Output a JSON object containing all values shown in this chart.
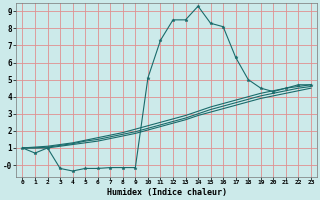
{
  "xlabel": "Humidex (Indice chaleur)",
  "bg_color": "#cceaea",
  "grid_color": "#e09090",
  "line_color": "#1a6b6b",
  "xlim": [
    -0.5,
    23.5
  ],
  "ylim": [
    -0.7,
    9.5
  ],
  "xticks": [
    0,
    1,
    2,
    3,
    4,
    5,
    6,
    7,
    8,
    9,
    10,
    11,
    12,
    13,
    14,
    15,
    16,
    17,
    18,
    19,
    20,
    21,
    22,
    23
  ],
  "yticks": [
    0,
    1,
    2,
    3,
    4,
    5,
    6,
    7,
    8,
    9
  ],
  "ytick_labels": [
    "-0",
    "1",
    "2",
    "3",
    "4",
    "5",
    "6",
    "7",
    "8",
    "9"
  ],
  "curve1_x": [
    0,
    1,
    2,
    3,
    4,
    5,
    6,
    7,
    8,
    9,
    10,
    11,
    12,
    13,
    14,
    15,
    16,
    17,
    18,
    19,
    20,
    21,
    22,
    23
  ],
  "curve1_y": [
    1.0,
    0.7,
    1.0,
    -0.2,
    -0.35,
    -0.2,
    -0.2,
    -0.15,
    -0.15,
    -0.15,
    5.1,
    7.3,
    8.5,
    8.5,
    9.3,
    8.3,
    8.1,
    6.3,
    5.0,
    4.5,
    4.3,
    4.5,
    4.7,
    4.7
  ],
  "curve2_x": [
    0,
    1,
    2,
    3,
    4,
    5,
    6,
    7,
    8,
    9,
    10,
    11,
    12,
    13,
    14,
    15,
    16,
    17,
    18,
    19,
    20,
    21,
    22,
    23
  ],
  "curve2_y": [
    1.0,
    1.05,
    1.1,
    1.2,
    1.3,
    1.45,
    1.6,
    1.75,
    1.9,
    2.1,
    2.3,
    2.5,
    2.7,
    2.9,
    3.15,
    3.4,
    3.6,
    3.8,
    4.0,
    4.2,
    4.35,
    4.5,
    4.6,
    4.7
  ],
  "curve3_x": [
    0,
    1,
    2,
    3,
    4,
    5,
    6,
    7,
    8,
    9,
    10,
    11,
    12,
    13,
    14,
    15,
    16,
    17,
    18,
    19,
    20,
    21,
    22,
    23
  ],
  "curve3_y": [
    1.0,
    1.0,
    1.05,
    1.15,
    1.25,
    1.4,
    1.5,
    1.65,
    1.8,
    1.95,
    2.15,
    2.35,
    2.55,
    2.75,
    3.0,
    3.25,
    3.45,
    3.65,
    3.85,
    4.05,
    4.2,
    4.35,
    4.5,
    4.6
  ],
  "curve4_x": [
    0,
    1,
    2,
    3,
    4,
    5,
    6,
    7,
    8,
    9,
    10,
    11,
    12,
    13,
    14,
    15,
    16,
    17,
    18,
    19,
    20,
    21,
    22,
    23
  ],
  "curve4_y": [
    1.0,
    1.0,
    1.0,
    1.1,
    1.2,
    1.3,
    1.4,
    1.55,
    1.7,
    1.85,
    2.05,
    2.25,
    2.45,
    2.65,
    2.9,
    3.1,
    3.3,
    3.5,
    3.7,
    3.9,
    4.05,
    4.2,
    4.35,
    4.5
  ]
}
